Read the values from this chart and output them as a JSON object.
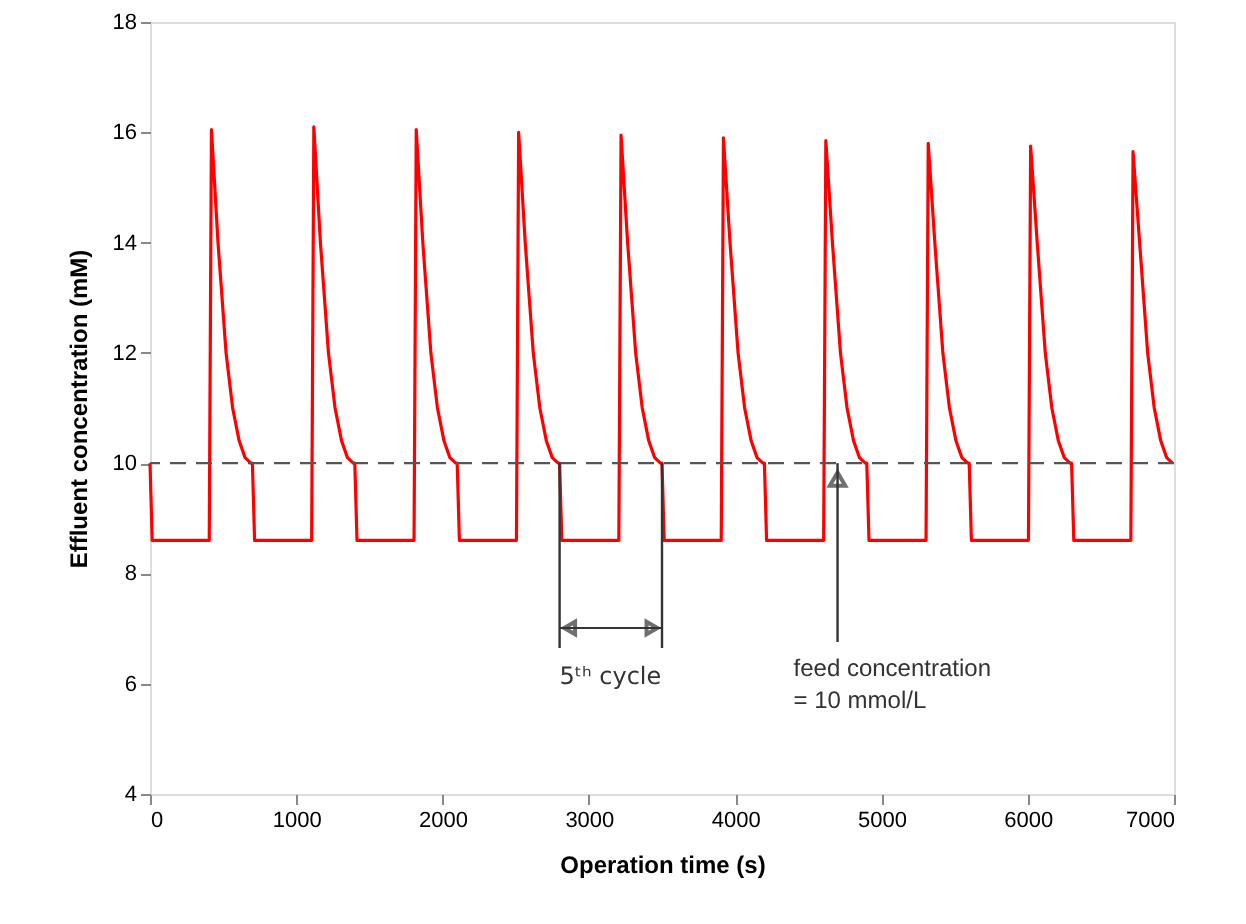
{
  "chart_data": {
    "type": "line",
    "xlabel": "Operation time (s)",
    "ylabel": "Effluent concentration (mM)",
    "xlim": [
      0,
      7000
    ],
    "xticks": [
      0,
      1000,
      2000,
      3000,
      4000,
      5000,
      6000,
      7000
    ],
    "ylim": [
      4,
      18
    ],
    "yticks": [
      4,
      6,
      8,
      10,
      12,
      14,
      16,
      18
    ],
    "grid": false,
    "marker": "none",
    "line_style": "solid",
    "series": [
      {
        "color": "#ff0000",
        "x": [
          0,
          15,
          405,
          420,
          465,
          520,
          565,
          610,
          650,
          690,
          700,
          715,
          1105,
          1120,
          1165,
          1220,
          1265,
          1310,
          1350,
          1390,
          1400,
          1415,
          1805,
          1820,
          1865,
          1920,
          1965,
          2010,
          2050,
          2090,
          2100,
          2115,
          2505,
          2520,
          2565,
          2620,
          2665,
          2710,
          2750,
          2790,
          2800,
          2815,
          3205,
          3220,
          3265,
          3320,
          3365,
          3410,
          3450,
          3490,
          3500,
          3515,
          3905,
          3920,
          3965,
          4020,
          4065,
          4110,
          4150,
          4190,
          4200,
          4215,
          4605,
          4620,
          4665,
          4720,
          4765,
          4810,
          4850,
          4890,
          4900,
          4915,
          5305,
          5320,
          5365,
          5420,
          5465,
          5510,
          5550,
          5590,
          5600,
          5615,
          6005,
          6020,
          6065,
          6120,
          6165,
          6210,
          6250,
          6290,
          6300,
          6315,
          6705,
          6720,
          6765,
          6820,
          6865,
          6910,
          6950,
          6990
        ],
        "values": [
          10,
          8.6,
          8.6,
          16.05,
          14,
          12,
          11,
          10.4,
          10.1,
          10,
          10,
          8.6,
          8.6,
          16.1,
          14,
          12,
          11,
          10.4,
          10.1,
          10,
          10,
          8.6,
          8.6,
          16.05,
          14,
          12,
          11,
          10.4,
          10.1,
          10,
          10,
          8.6,
          8.6,
          16,
          14,
          12,
          11,
          10.4,
          10.1,
          10,
          10,
          8.6,
          8.6,
          15.95,
          14,
          12,
          11,
          10.4,
          10.1,
          10,
          10,
          8.6,
          8.6,
          15.9,
          14,
          12,
          11,
          10.4,
          10.1,
          10,
          10,
          8.6,
          8.6,
          15.85,
          14,
          12,
          11,
          10.4,
          10.1,
          10,
          10,
          8.6,
          8.6,
          15.8,
          14,
          12,
          11,
          10.4,
          10.1,
          10,
          10,
          8.6,
          8.6,
          15.75,
          14,
          12,
          11,
          10.4,
          10.1,
          10,
          10,
          8.6,
          8.6,
          15.65,
          14,
          12,
          11,
          10.4,
          10.1,
          10
        ]
      }
    ],
    "ref_lines": [
      {
        "axis": "y",
        "value": 10,
        "color": "#555555",
        "line_style": "dashed"
      },
      {
        "axis": "x",
        "value": 2800,
        "color": "#333333",
        "line_style": "solid"
      },
      {
        "axis": "x",
        "value": 3500,
        "color": "#333333",
        "line_style": "solid"
      }
    ],
    "annotations": [
      "5ᵗʰ cycle",
      {
        "text": "feed concentration\n= 10 mmol/L",
        "x": 4700,
        "y": 10
      }
    ]
  }
}
